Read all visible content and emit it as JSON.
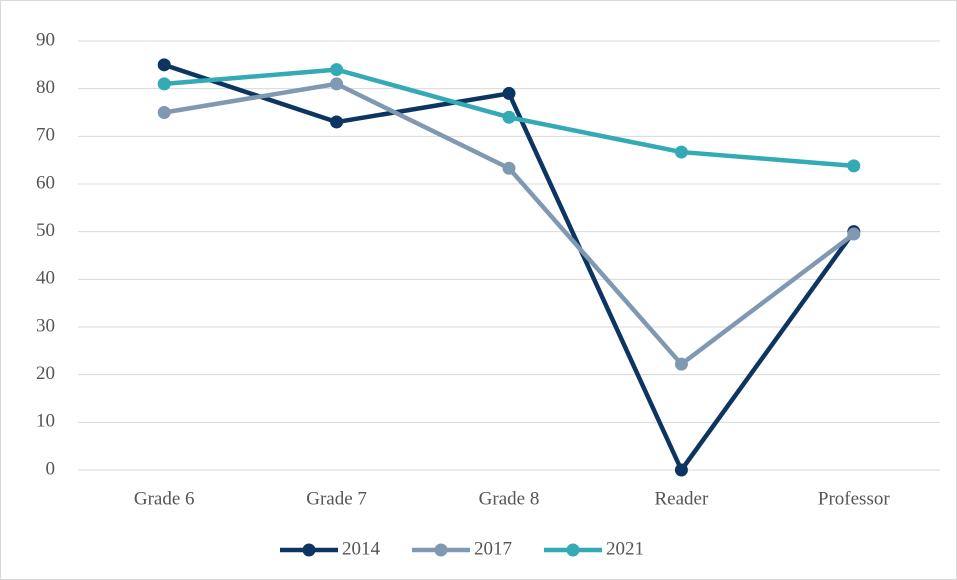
{
  "chart_data": {
    "type": "line",
    "categories": [
      "Grade 6",
      "Grade 7",
      "Grade 8",
      "Reader",
      "Professor"
    ],
    "series": [
      {
        "name": "2014",
        "color": "#0c3561",
        "values": [
          85,
          73,
          79,
          0,
          50
        ]
      },
      {
        "name": "2017",
        "color": "#8099b3",
        "values": [
          75,
          81,
          63.3,
          22.2,
          49.5
        ]
      },
      {
        "name": "2021",
        "color": "#33aab5",
        "values": [
          81,
          84,
          74,
          66.7,
          63.8
        ]
      }
    ],
    "ylim": [
      0,
      90
    ],
    "yticks": [
      0,
      10,
      20,
      30,
      40,
      50,
      60,
      70,
      80,
      90
    ],
    "grid": true,
    "legend": "bottom"
  }
}
